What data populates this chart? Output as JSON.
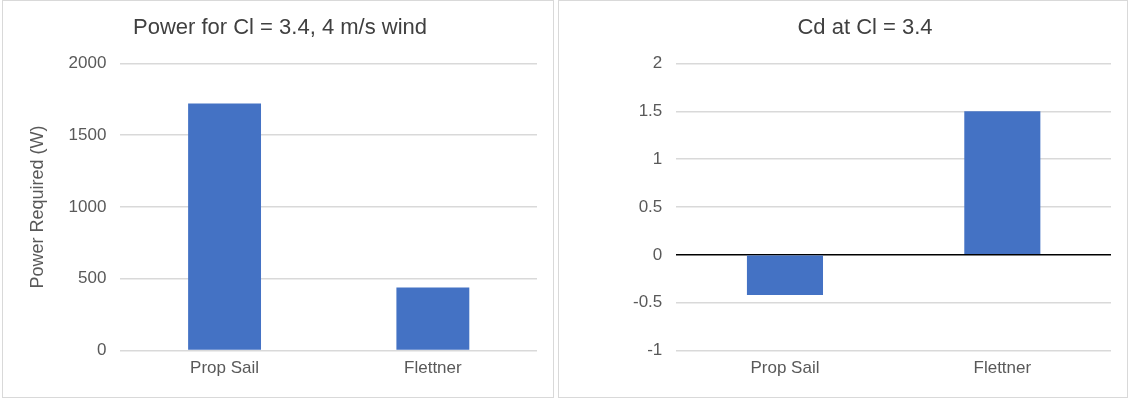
{
  "chart_data": [
    {
      "type": "bar",
      "title": "Power for Cl = 3.4, 4 m/s wind",
      "ylabel": "Power Required (W)",
      "categories": [
        "Prop Sail",
        "Flettner"
      ],
      "series": [
        {
          "color": "#4472c4",
          "values": [
            1720,
            440
          ]
        }
      ],
      "ylim": [
        0,
        2000
      ],
      "yticks": [
        0,
        500,
        1000,
        1500,
        2000
      ],
      "grid": "y",
      "legend": false
    },
    {
      "type": "bar",
      "title": "Cd at Cl = 3.4",
      "categories": [
        "Prop Sail",
        "Flettner"
      ],
      "series": [
        {
          "color": "#4472c4",
          "values": [
            -0.42,
            1.5
          ]
        }
      ],
      "ylim": [
        -1,
        2
      ],
      "yticks": [
        -1,
        -0.5,
        0,
        0.5,
        1,
        1.5,
        2
      ],
      "grid": "y",
      "legend": false
    }
  ]
}
